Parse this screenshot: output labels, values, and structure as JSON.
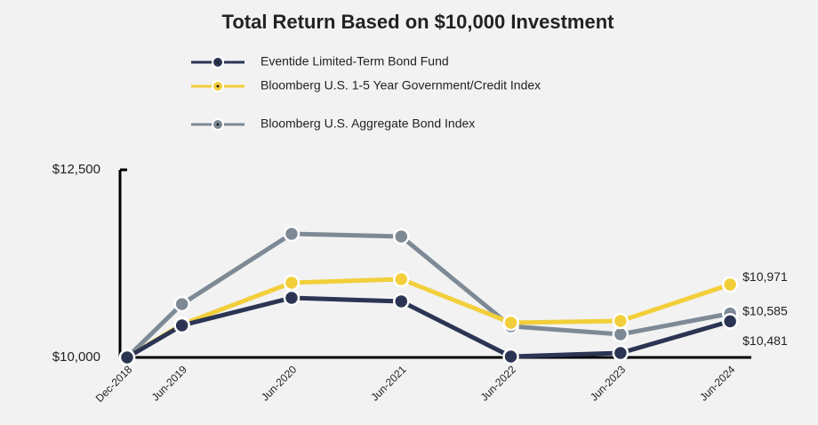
{
  "chart_data": {
    "type": "line",
    "title": "Total Return Based on $10,000 Investment",
    "categories": [
      "Dec-2018",
      "Jun-2019",
      "Jun-2020",
      "Jun-2021",
      "Jun-2022",
      "Jun-2023",
      "Jun-2024"
    ],
    "series": [
      {
        "name": "Eventide Limited-Term Bond Fund",
        "color": "#2b3553",
        "values": [
          10000,
          10427,
          10794,
          10747,
          10012,
          10059,
          10481
        ],
        "value_labels": [
          null,
          null,
          null,
          null,
          null,
          null,
          "$10,481"
        ]
      },
      {
        "name": "Bloomberg U.S. 1-5 Year Government/Credit Index",
        "color": "#f2cf3a",
        "values": [
          10000,
          10440,
          10995,
          11043,
          10462,
          10486,
          10971
        ],
        "value_labels": [
          null,
          null,
          null,
          null,
          null,
          null,
          "$10,971"
        ]
      },
      {
        "name": "Bloomberg U.S. Aggregate Bond Index",
        "color": "#7d8a96",
        "values": [
          10000,
          10711,
          11647,
          11612,
          10415,
          10308,
          10585
        ],
        "value_labels": [
          null,
          null,
          null,
          null,
          null,
          null,
          "$10,585"
        ]
      }
    ],
    "ylim": [
      10000,
      12500
    ],
    "yticks": [
      {
        "value": 10000,
        "label": "$10,000"
      },
      {
        "value": 12500,
        "label": "$12,500"
      }
    ]
  }
}
